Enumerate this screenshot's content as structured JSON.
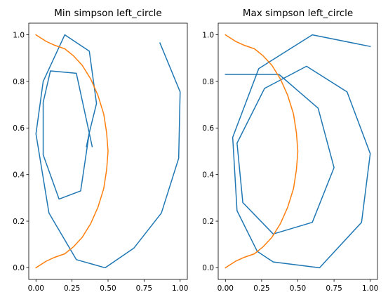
{
  "chart_data": [
    {
      "type": "line",
      "title": "Min simpson left_circle",
      "xlim": [
        -0.05,
        1.05
      ],
      "ylim": [
        -0.05,
        1.05
      ],
      "xticks": [
        0.0,
        0.25,
        0.5,
        0.75,
        1.0
      ],
      "yticks": [
        0.0,
        0.2,
        0.4,
        0.6,
        0.8,
        1.0
      ],
      "xtick_labels": [
        "0.00",
        "0.25",
        "0.50",
        "0.75",
        "1.00"
      ],
      "ytick_labels": [
        "0.0",
        "0.2",
        "0.4",
        "0.6",
        "0.8",
        "1.0"
      ],
      "series": [
        {
          "color": "#1f77b4",
          "x": [
            0.86,
            1.0,
            0.99,
            0.87,
            0.68,
            0.48,
            0.28,
            0.09,
            0.0,
            0.05,
            0.2,
            0.37,
            0.42,
            0.37,
            0.35
          ],
          "y": [
            0.965,
            0.755,
            0.47,
            0.235,
            0.085,
            0.0,
            0.035,
            0.235,
            0.575,
            0.8,
            1.0,
            0.93,
            0.705,
            0.58,
            0.52
          ]
        },
        {
          "color": "#1f77b4",
          "x": [
            0.39,
            0.28,
            0.1,
            0.05,
            0.05,
            0.16,
            0.31,
            0.37
          ],
          "y": [
            0.52,
            0.835,
            0.845,
            0.71,
            0.485,
            0.295,
            0.33,
            0.58
          ]
        },
        {
          "color": "#ff7f0e",
          "x": [
            0.0,
            0.03,
            0.07,
            0.13,
            0.2,
            0.26,
            0.32,
            0.38,
            0.43,
            0.47,
            0.49,
            0.5,
            0.49,
            0.47,
            0.43,
            0.38,
            0.32,
            0.26,
            0.2,
            0.13,
            0.07,
            0.03,
            0.0
          ],
          "y": [
            1.0,
            0.988,
            0.972,
            0.955,
            0.94,
            0.91,
            0.87,
            0.81,
            0.74,
            0.66,
            0.58,
            0.5,
            0.42,
            0.34,
            0.26,
            0.19,
            0.13,
            0.09,
            0.06,
            0.045,
            0.028,
            0.012,
            0.0
          ]
        }
      ]
    },
    {
      "type": "line",
      "title": "Max simpson left_circle",
      "xlim": [
        -0.05,
        1.05
      ],
      "ylim": [
        -0.05,
        1.05
      ],
      "xticks": [
        0.0,
        0.25,
        0.5,
        0.75,
        1.0
      ],
      "yticks": [
        0.0,
        0.2,
        0.4,
        0.6,
        0.8,
        1.0
      ],
      "xtick_labels": [
        "0.00",
        "0.25",
        "0.50",
        "0.75",
        "1.00"
      ],
      "ytick_labels": [
        "0.0",
        "0.2",
        "0.4",
        "0.6",
        "0.8",
        "1.0"
      ],
      "series": [
        {
          "color": "#1f77b4",
          "x": [
            1.0,
            0.6,
            0.23,
            0.05,
            0.08,
            0.22,
            0.33,
            0.65,
            0.94,
            1.0,
            0.84,
            0.56,
            0.27,
            0.08,
            0.12,
            0.33,
            0.6,
            0.75,
            0.64,
            0.37,
            0.0
          ],
          "y": [
            0.95,
            1.0,
            0.855,
            0.56,
            0.245,
            0.07,
            0.025,
            0.0,
            0.195,
            0.49,
            0.755,
            0.865,
            0.77,
            0.535,
            0.28,
            0.145,
            0.195,
            0.43,
            0.685,
            0.83,
            0.83
          ]
        },
        {
          "color": "#ff7f0e",
          "x": [
            0.0,
            0.03,
            0.07,
            0.13,
            0.2,
            0.26,
            0.32,
            0.38,
            0.43,
            0.47,
            0.49,
            0.5,
            0.49,
            0.47,
            0.43,
            0.38,
            0.32,
            0.26,
            0.2,
            0.13,
            0.07,
            0.03,
            0.0
          ],
          "y": [
            1.0,
            0.988,
            0.972,
            0.955,
            0.94,
            0.91,
            0.87,
            0.81,
            0.74,
            0.66,
            0.58,
            0.5,
            0.42,
            0.34,
            0.26,
            0.19,
            0.13,
            0.09,
            0.06,
            0.045,
            0.028,
            0.012,
            0.0
          ]
        }
      ]
    }
  ]
}
